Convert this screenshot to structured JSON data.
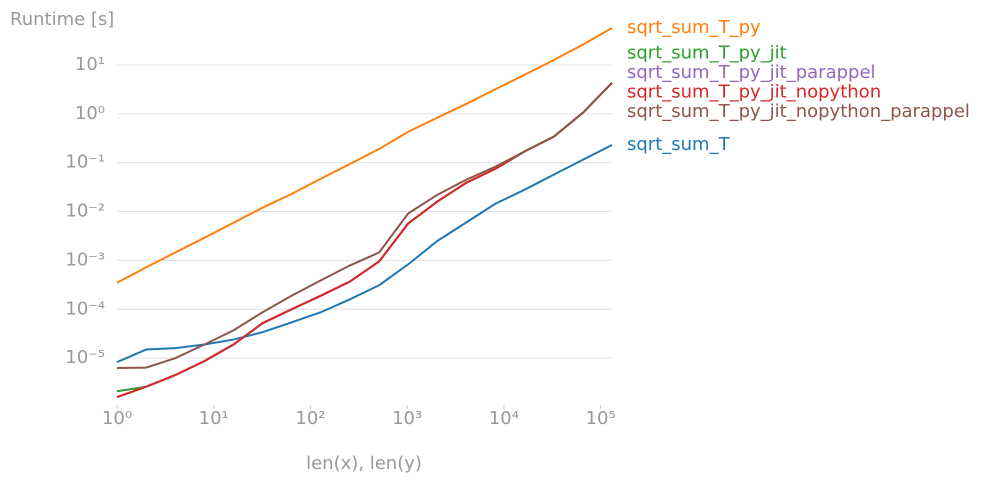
{
  "chart_data": {
    "type": "line",
    "y_label": "Runtime [s]",
    "x_label": "len(x), len(y)",
    "xscale": "log",
    "yscale": "log",
    "grid": true,
    "legend": "right",
    "x": [
      1,
      2,
      4,
      8,
      16,
      32,
      64,
      128,
      256,
      512,
      1024,
      2048,
      4096,
      8192,
      16384,
      32768,
      65536,
      131072
    ],
    "xlim": [
      1,
      131072
    ],
    "ylim": [
      1.1e-06,
      57
    ],
    "xticks": [
      {
        "value": 1,
        "label": "10⁰"
      },
      {
        "value": 10,
        "label": "10¹"
      },
      {
        "value": 100,
        "label": "10²"
      },
      {
        "value": 1000,
        "label": "10³"
      },
      {
        "value": 10000,
        "label": "10⁴"
      },
      {
        "value": 100000,
        "label": "10⁵"
      }
    ],
    "yticks": [
      {
        "value": 1e-05,
        "label": "10⁻⁵"
      },
      {
        "value": 0.0001,
        "label": "10⁻⁴"
      },
      {
        "value": 0.001,
        "label": "10⁻³"
      },
      {
        "value": 0.01,
        "label": "10⁻²"
      },
      {
        "value": 0.1,
        "label": "10⁻¹"
      },
      {
        "value": 1,
        "label": "10⁰"
      },
      {
        "value": 10,
        "label": "10¹"
      }
    ],
    "series": [
      {
        "name": "sqrt_sum_T",
        "color": "#1f77b4",
        "values": [
          8.3e-06,
          1.5e-05,
          1.6e-05,
          1.9e-05,
          2.4e-05,
          3.4e-05,
          5.4e-05,
          8.7e-05,
          0.00016,
          0.00031,
          0.00083,
          0.0025,
          0.006,
          0.0145,
          0.028,
          0.057,
          0.115,
          0.23
        ]
      },
      {
        "name": "sqrt_sum_T_py",
        "color": "#ff7f0e",
        "values": [
          0.00035,
          0.00072,
          0.00145,
          0.0029,
          0.0059,
          0.012,
          0.023,
          0.047,
          0.094,
          0.19,
          0.43,
          0.83,
          1.6,
          3.2,
          6.3,
          12.6,
          26,
          57
        ]
      },
      {
        "name": "sqrt_sum_T_py_jit",
        "color": "#2ca02c",
        "values": [
          2.1e-06,
          2.6e-06,
          4.5e-06,
          8.7e-06,
          1.9e-05,
          5.2e-05,
          0.0001,
          0.00019,
          0.00037,
          0.00095,
          0.0057,
          0.016,
          0.039,
          0.075,
          0.17,
          0.34,
          1.05,
          4.3
        ]
      },
      {
        "name": "sqrt_sum_T_py_jit_parappel",
        "color": "#9467bd",
        "values": [
          1.6e-06,
          2.6e-06,
          4.5e-06,
          8.7e-06,
          1.9e-05,
          5.2e-05,
          0.0001,
          0.00019,
          0.00037,
          0.00095,
          0.0057,
          0.016,
          0.039,
          0.075,
          0.17,
          0.34,
          1.05,
          4.3
        ]
      },
      {
        "name": "sqrt_sum_T_py_jit_nopython",
        "color": "#d62728",
        "values": [
          1.6e-06,
          2.6e-06,
          4.5e-06,
          8.7e-06,
          1.9e-05,
          5.2e-05,
          0.0001,
          0.00019,
          0.00037,
          0.00095,
          0.0057,
          0.016,
          0.039,
          0.075,
          0.17,
          0.34,
          1.05,
          4.3
        ]
      },
      {
        "name": "sqrt_sum_T_py_jit_nopython_parappel",
        "color": "#8c564b",
        "values": [
          6.3e-06,
          6.4e-06,
          1e-05,
          1.9e-05,
          3.7e-05,
          8.7e-05,
          0.00019,
          0.00039,
          0.00079,
          0.00145,
          0.0091,
          0.022,
          0.045,
          0.083,
          0.17,
          0.34,
          1.05,
          4.3
        ]
      }
    ]
  }
}
